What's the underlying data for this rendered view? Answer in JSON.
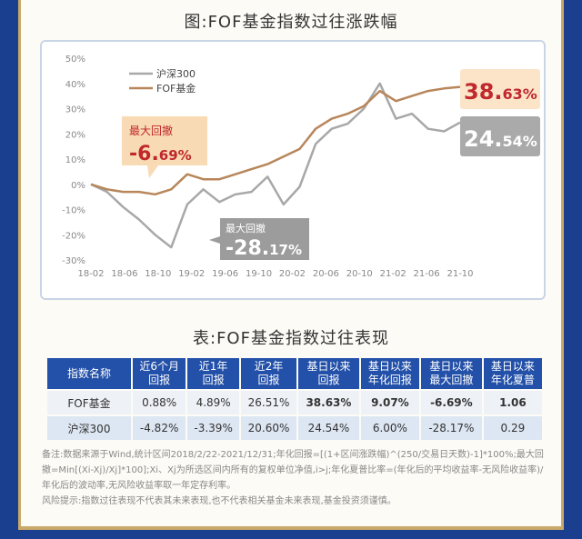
{
  "chart_title": "图:FOF基金指数过往涨跌幅",
  "table_title": "表:FOF基金指数过往表现",
  "chart_data": {
    "type": "line",
    "x": [
      "2018-02",
      "2018-04",
      "2018-06",
      "2018-08",
      "2018-10",
      "2018-12",
      "2019-02",
      "2019-04",
      "2019-06",
      "2019-08",
      "2019-10",
      "2019-12",
      "2020-02",
      "2020-04",
      "2020-06",
      "2020-08",
      "2020-10",
      "2020-12",
      "2021-02",
      "2021-04",
      "2021-06",
      "2021-08",
      "2021-10",
      "2021-12"
    ],
    "x_tick_labels": [
      "18-02",
      "18-06",
      "18-10",
      "19-02",
      "19-06",
      "19-10",
      "20-02",
      "20-06",
      "20-10",
      "21-02",
      "21-06",
      "21-10"
    ],
    "y_tick_labels": [
      "50%",
      "40%",
      "30%",
      "20%",
      "10%",
      "0%",
      "-10%",
      "-20%",
      "-30%"
    ],
    "ylim": [
      -30,
      50
    ],
    "series": [
      {
        "name": "沪深300",
        "color": "#a8a8a8",
        "values": [
          0,
          -3,
          -9,
          -14,
          -20,
          -25,
          -8,
          -2,
          -7,
          -4,
          -3,
          3,
          -8,
          -1,
          16,
          22,
          24,
          30,
          40,
          26,
          28,
          22,
          21,
          24.54
        ]
      },
      {
        "name": "FOF基金",
        "color": "#b8865a",
        "values": [
          0,
          -2,
          -3,
          -3,
          -4,
          -2,
          4,
          2,
          2,
          4,
          6,
          8,
          11,
          14,
          22,
          26,
          28,
          31,
          37,
          33,
          35,
          37,
          38,
          38.63
        ]
      }
    ],
    "annotations": [
      {
        "label": "最大回撤",
        "value": "-6.69%",
        "value_main": "-6.",
        "value_small": "69%"
      },
      {
        "label": "最大回撤",
        "value": "-28.17%",
        "value_main": "-28.",
        "value_small": "17%"
      }
    ],
    "end_labels": [
      {
        "series": "FOF基金",
        "value": "38.63%",
        "value_main": "38.",
        "value_small": "63%"
      },
      {
        "series": "沪深300",
        "value": "24.54%",
        "value_main": "24.",
        "value_small": "54%"
      }
    ]
  },
  "table": {
    "headers": [
      [
        "指数名称"
      ],
      [
        "近6个月",
        "回报"
      ],
      [
        "近1年",
        "回报"
      ],
      [
        "近2年",
        "回报"
      ],
      [
        "基日以来",
        "回报"
      ],
      [
        "基日以来",
        "年化回报"
      ],
      [
        "基日以来",
        "最大回撤"
      ],
      [
        "基日以来",
        "年化夏普"
      ]
    ],
    "rows": [
      {
        "name": "FOF基金",
        "cells": [
          "0.88%",
          "4.89%",
          "26.51%",
          "38.63%",
          "9.07%",
          "-6.69%",
          "1.06"
        ]
      },
      {
        "name": "沪深300",
        "cells": [
          "-4.82%",
          "-3.39%",
          "20.60%",
          "24.54%",
          "6.00%",
          "-28.17%",
          "0.29"
        ]
      }
    ]
  },
  "notes": {
    "note": "备注:数据来源于Wind,统计区间2018/2/22-2021/12/31;年化回报=[(1+区间涨跌幅)^(250/交易日天数)-1]*100%;最大回撤=Min[(Xi-Xj)/Xj]*100];Xi、Xj为所选区间内所有的复权单位净值,i>j;年化夏普比率=(年化后的平均收益率-无风险收益率)/年化后的波动率,无风险收益率取一年定存利率。",
    "risk": "风险提示:指数过往表现不代表其未来表现,也不代表相关基金未来表现,基金投资须谨慎。"
  }
}
